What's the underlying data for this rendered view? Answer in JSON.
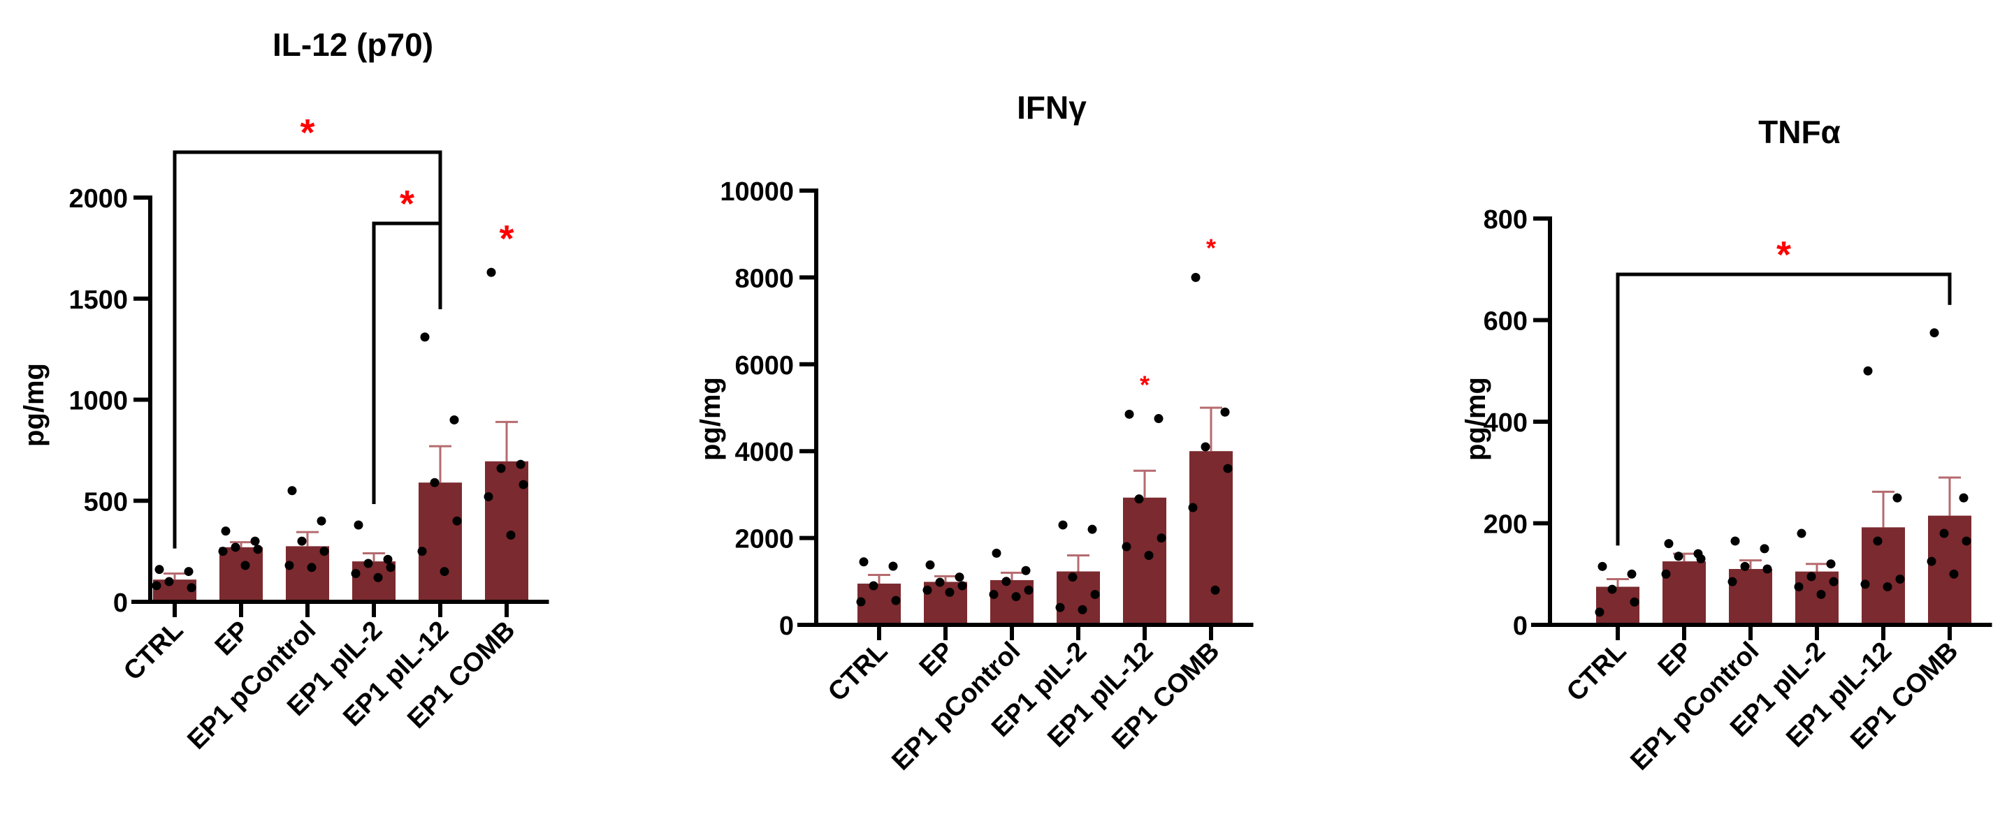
{
  "colors": {
    "bar": "#7b2a2f",
    "error_bar": "#b56b6f",
    "significance": "#ff0000",
    "point": "#000000"
  },
  "chart_data": [
    {
      "type": "bar",
      "title": "IL-12 (p70)",
      "xlabel": "",
      "ylabel": "pg/mg",
      "ylim": [
        0,
        2000
      ],
      "yticks": [
        0,
        500,
        1000,
        1500,
        2000
      ],
      "categories": [
        "CTRL",
        "EP",
        "EP1 pControl",
        "EP1 pIL-2",
        "EP1 pIL-12",
        "EP1 COMB"
      ],
      "values": [
        110,
        270,
        275,
        200,
        590,
        695
      ],
      "sem": [
        30,
        25,
        70,
        40,
        180,
        195
      ],
      "points": [
        [
          160,
          150,
          100,
          70,
          80
        ],
        [
          350,
          300,
          270,
          260,
          250,
          180
        ],
        [
          550,
          400,
          300,
          250,
          180,
          170
        ],
        [
          380,
          210,
          190,
          170,
          140,
          120
        ],
        [
          1310,
          900,
          590,
          400,
          250,
          150
        ],
        [
          1630,
          680,
          660,
          580,
          520,
          330
        ]
      ],
      "brackets": [
        {
          "from": "CTRL",
          "to": "EP1 pIL-12",
          "label": "*"
        },
        {
          "from": "EP1 pIL-2",
          "to": "EP1 pIL-12",
          "label": "*"
        }
      ],
      "markers": [
        {
          "category": "EP1 COMB",
          "label": "*"
        }
      ]
    },
    {
      "type": "bar",
      "title": "IFNγ",
      "xlabel": "",
      "ylabel": "pg/mg",
      "ylim": [
        0,
        10000
      ],
      "yticks": [
        0,
        2000,
        4000,
        6000,
        8000,
        10000
      ],
      "categories": [
        "CTRL",
        "EP",
        "EP1 pControl",
        "EP1 pIL-2",
        "EP1 pIL-12",
        "EP1 COMB"
      ],
      "values": [
        950,
        990,
        1030,
        1230,
        2930,
        4000
      ],
      "sem": [
        200,
        130,
        170,
        370,
        620,
        1000
      ],
      "points": [
        [
          1450,
          1350,
          900,
          560,
          530
        ],
        [
          1380,
          1100,
          980,
          900,
          800,
          750
        ],
        [
          1650,
          1250,
          1000,
          800,
          700,
          650
        ],
        [
          2300,
          2200,
          1100,
          700,
          400,
          350
        ],
        [
          4850,
          4750,
          2900,
          2000,
          1800,
          1600
        ],
        [
          8000,
          4900,
          4100,
          3600,
          2700,
          800
        ]
      ],
      "brackets": [],
      "markers": [
        {
          "category": "EP1 pIL-12",
          "label": "*"
        },
        {
          "category": "EP1 COMB",
          "label": "*"
        }
      ]
    },
    {
      "type": "bar",
      "title": "TNFα",
      "xlabel": "",
      "ylabel": "pg/mg",
      "ylim": [
        0,
        800
      ],
      "yticks": [
        0,
        200,
        400,
        600,
        800
      ],
      "categories": [
        "CTRL",
        "EP",
        "EP1 pControl",
        "EP1 pIL-2",
        "EP1 pIL-12",
        "EP1 COMB"
      ],
      "values": [
        75,
        125,
        110,
        105,
        192,
        215
      ],
      "sem": [
        15,
        15,
        17,
        15,
        70,
        75
      ],
      "points": [
        [
          115,
          100,
          70,
          45,
          25
        ],
        [
          160,
          140,
          135,
          130,
          100
        ],
        [
          165,
          150,
          115,
          110,
          85
        ],
        [
          180,
          120,
          95,
          85,
          75,
          60
        ],
        [
          500,
          250,
          165,
          90,
          80,
          75
        ],
        [
          575,
          250,
          180,
          165,
          125,
          100
        ]
      ],
      "brackets": [
        {
          "from": "CTRL",
          "to": "EP1 COMB",
          "label": "*"
        }
      ],
      "markers": []
    }
  ]
}
